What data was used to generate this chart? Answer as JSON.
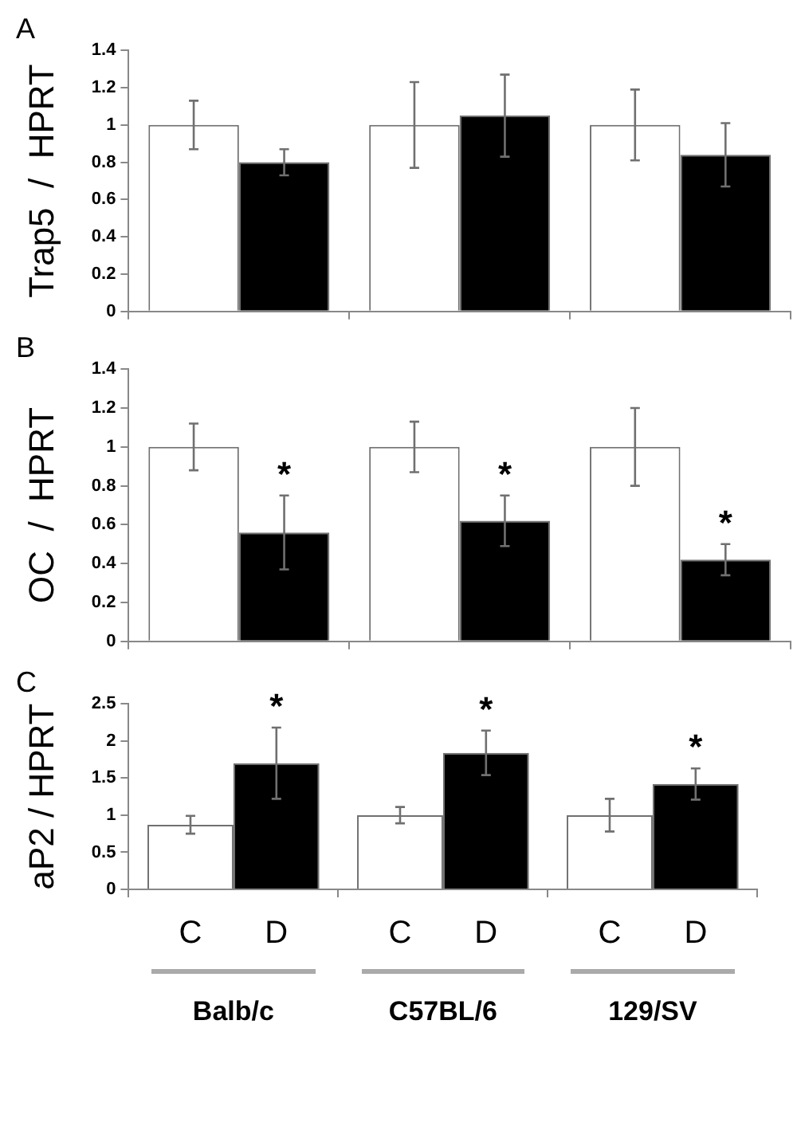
{
  "chart_data": [
    {
      "type": "bar",
      "title": "A",
      "ylabel": "Trap5  /  HPRT",
      "categories": [
        null,
        null,
        null
      ],
      "tick_labels": "y",
      "ylim": [
        0,
        1.4
      ],
      "yticks": [
        0,
        0.2,
        0.4,
        0.6,
        0.8,
        1,
        1.2,
        1.4
      ],
      "series": [
        {
          "color": "#ffffff",
          "values": [
            1,
            1,
            1
          ],
          "errors": [
            0.13,
            0.23,
            0.19
          ]
        },
        {
          "color": "#000000",
          "values": [
            0.8,
            1.05,
            0.84
          ],
          "errors": [
            0.07,
            0.22,
            0.17
          ]
        }
      ]
    },
    {
      "type": "bar",
      "title": "B",
      "ylabel": "OC  /  HPRT",
      "categories": [
        null,
        null,
        null
      ],
      "tick_labels": "y",
      "ylim": [
        0,
        1.4
      ],
      "yticks": [
        0,
        0.2,
        0.4,
        0.6,
        0.8,
        1,
        1.2,
        1.4
      ],
      "series": [
        {
          "color": "#ffffff",
          "values": [
            1,
            1,
            1
          ],
          "errors": [
            0.12,
            0.13,
            0.2
          ]
        },
        {
          "color": "#000000",
          "values": [
            0.56,
            0.62,
            0.42
          ],
          "errors": [
            0.19,
            0.13,
            0.08
          ],
          "value_labels": [
            "*",
            "*",
            "*"
          ]
        }
      ]
    },
    {
      "type": "bar",
      "title": "C",
      "ylabel": "aP2 / HPRT",
      "categories": [
        "Balb/c",
        "C57BL/6",
        "129/SV"
      ],
      "ylim": [
        0,
        2.5
      ],
      "yticks": [
        0,
        0.5,
        1,
        1.5,
        2,
        2.5
      ],
      "series": [
        {
          "name": "C",
          "color": "#ffffff",
          "values": [
            0.87,
            1,
            1
          ],
          "errors": [
            0.12,
            0.11,
            0.22
          ]
        },
        {
          "name": "D",
          "color": "#000000",
          "values": [
            1.7,
            1.84,
            1.42
          ],
          "errors": [
            0.48,
            0.3,
            0.21
          ],
          "value_labels": [
            "*",
            "*",
            "*"
          ]
        }
      ]
    }
  ]
}
